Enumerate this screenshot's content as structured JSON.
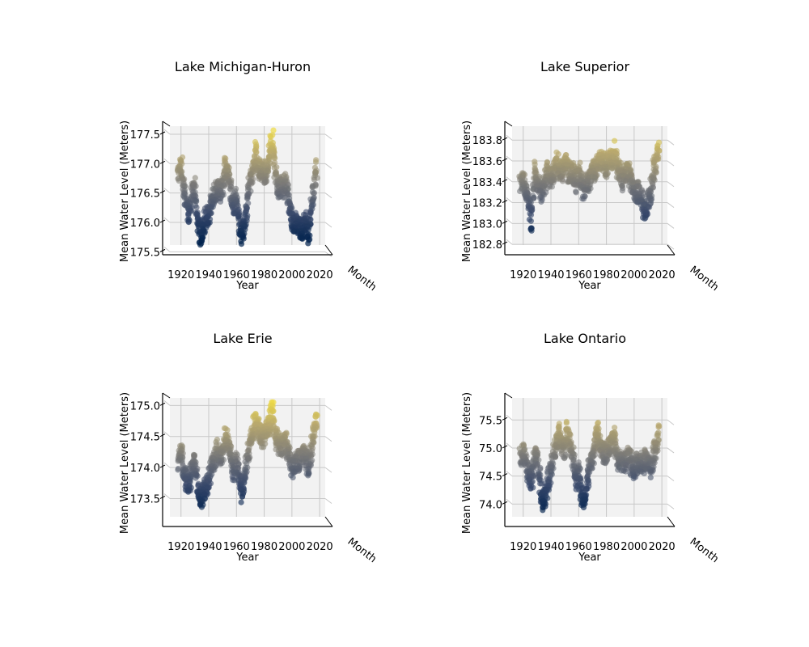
{
  "figure": {
    "background": "#ffffff",
    "colormap": "cividis",
    "colormap_stops": [
      "#00224e",
      "#3a4a6c",
      "#7c7b78",
      "#b8a86f",
      "#fde838"
    ]
  },
  "chart_data": [
    {
      "type": "scatter",
      "projection": "3d-side-view",
      "title": "Lake Michigan-Huron",
      "xlabel": "Year",
      "ylabel": "Mean Water Level (Meters)",
      "zlabel": "Month",
      "xlim": [
        1912,
        2024
      ],
      "ylim": [
        175.45,
        177.72
      ],
      "xticks": [
        1920,
        1940,
        1960,
        1980,
        2000,
        2020
      ],
      "yticks": [
        "175.5",
        "176.0",
        "176.5",
        "177.0",
        "177.5"
      ],
      "color_by": "y",
      "series": [
        {
          "x": [
            1918,
            1920,
            1922,
            1924,
            1926,
            1928,
            1930,
            1932,
            1934,
            1936,
            1938,
            1940,
            1942,
            1944,
            1946,
            1948,
            1950,
            1952,
            1954,
            1956,
            1958,
            1960,
            1962,
            1964,
            1966,
            1968,
            1970,
            1972,
            1974,
            1976,
            1978,
            1980,
            1982,
            1984,
            1986,
            1988,
            1990,
            1992,
            1994,
            1996,
            1998,
            2000,
            2002,
            2004,
            2006,
            2008,
            2010,
            2012,
            2014,
            2016,
            2018
          ],
          "y": [
            176.8,
            177.0,
            176.6,
            176.3,
            176.1,
            176.5,
            176.6,
            176.0,
            175.8,
            175.9,
            176.1,
            176.1,
            176.4,
            176.5,
            176.6,
            176.5,
            176.6,
            177.0,
            176.8,
            176.5,
            176.3,
            176.4,
            176.0,
            175.8,
            176.0,
            176.4,
            176.7,
            176.9,
            177.2,
            176.9,
            176.9,
            176.8,
            176.9,
            177.2,
            177.4,
            176.9,
            176.6,
            176.6,
            176.6,
            176.7,
            176.3,
            176.0,
            176.0,
            176.0,
            175.9,
            175.9,
            176.0,
            175.8,
            176.3,
            176.6,
            177.0
          ]
        }
      ]
    },
    {
      "type": "scatter",
      "projection": "3d-side-view",
      "title": "Lake Superior",
      "xlabel": "Year",
      "ylabel": "Mean Water Level (Meters)",
      "zlabel": "Month",
      "xlim": [
        1912,
        2024
      ],
      "ylim": [
        182.7,
        183.98
      ],
      "xticks": [
        1920,
        1940,
        1960,
        1980,
        2000,
        2020
      ],
      "yticks": [
        "182.8",
        "183.0",
        "183.2",
        "183.4",
        "183.6",
        "183.8"
      ],
      "color_by": "y",
      "series": [
        {
          "x": [
            1918,
            1920,
            1922,
            1924,
            1926,
            1928,
            1930,
            1932,
            1934,
            1936,
            1938,
            1940,
            1942,
            1944,
            1946,
            1948,
            1950,
            1952,
            1954,
            1956,
            1958,
            1960,
            1962,
            1964,
            1966,
            1968,
            1970,
            1972,
            1974,
            1976,
            1978,
            1980,
            1982,
            1984,
            1986,
            1988,
            1990,
            1992,
            1994,
            1996,
            1998,
            2000,
            2002,
            2004,
            2006,
            2008,
            2010,
            2012,
            2014,
            2016,
            2018
          ],
          "y": [
            183.4,
            183.4,
            183.3,
            183.2,
            183.0,
            183.5,
            183.4,
            183.3,
            183.3,
            183.4,
            183.5,
            183.4,
            183.5,
            183.6,
            183.5,
            183.5,
            183.6,
            183.5,
            183.5,
            183.5,
            183.4,
            183.5,
            183.4,
            183.3,
            183.4,
            183.4,
            183.5,
            183.5,
            183.6,
            183.6,
            183.6,
            183.5,
            183.6,
            183.6,
            183.7,
            183.5,
            183.5,
            183.4,
            183.5,
            183.5,
            183.4,
            183.3,
            183.3,
            183.3,
            183.2,
            183.1,
            183.2,
            183.3,
            183.5,
            183.6,
            183.7
          ]
        }
      ]
    },
    {
      "type": "scatter",
      "projection": "3d-side-view",
      "title": "Lake Erie",
      "xlabel": "Year",
      "ylabel": "Mean Water Level (Meters)",
      "zlabel": "Month",
      "xlim": [
        1912,
        2024
      ],
      "ylim": [
        173.05,
        175.2
      ],
      "xticks": [
        1920,
        1940,
        1960,
        1980,
        2000,
        2020
      ],
      "yticks": [
        "173.5",
        "174.0",
        "174.5",
        "175.0"
      ],
      "color_by": "y",
      "series": [
        {
          "x": [
            1918,
            1920,
            1922,
            1924,
            1926,
            1928,
            1930,
            1932,
            1934,
            1936,
            1938,
            1940,
            1942,
            1944,
            1946,
            1948,
            1950,
            1952,
            1954,
            1956,
            1958,
            1960,
            1962,
            1964,
            1966,
            1968,
            1970,
            1972,
            1974,
            1976,
            1978,
            1980,
            1982,
            1984,
            1986,
            1988,
            1990,
            1992,
            1994,
            1996,
            1998,
            2000,
            2002,
            2004,
            2006,
            2008,
            2010,
            2012,
            2014,
            2016,
            2018
          ],
          "y": [
            174.1,
            174.2,
            174.0,
            173.8,
            173.7,
            174.0,
            174.1,
            173.7,
            173.5,
            173.6,
            173.7,
            173.8,
            174.0,
            174.1,
            174.3,
            174.2,
            174.2,
            174.5,
            174.4,
            174.2,
            173.9,
            174.1,
            173.8,
            173.6,
            173.9,
            174.2,
            174.4,
            174.6,
            174.8,
            174.6,
            174.5,
            174.5,
            174.6,
            174.7,
            174.9,
            174.5,
            174.4,
            174.3,
            174.4,
            174.4,
            174.2,
            174.0,
            174.1,
            174.1,
            174.1,
            174.2,
            174.2,
            174.0,
            174.3,
            174.6,
            174.8
          ]
        }
      ]
    },
    {
      "type": "scatter",
      "projection": "3d-side-view",
      "title": "Lake Ontario",
      "xlabel": "Year",
      "ylabel": "Mean Water Level (Meters)",
      "zlabel": "Month",
      "xlim": [
        1912,
        2024
      ],
      "ylim": [
        73.6,
        75.98
      ],
      "xticks": [
        1920,
        1940,
        1960,
        1980,
        2000,
        2020
      ],
      "yticks": [
        "74.0",
        "74.5",
        "75.0",
        "75.5"
      ],
      "color_by": "y",
      "series": [
        {
          "x": [
            1918,
            1920,
            1922,
            1924,
            1926,
            1928,
            1930,
            1932,
            1934,
            1936,
            1938,
            1940,
            1942,
            1944,
            1946,
            1948,
            1950,
            1952,
            1954,
            1956,
            1958,
            1960,
            1962,
            1964,
            1966,
            1968,
            1970,
            1972,
            1974,
            1976,
            1978,
            1980,
            1982,
            1984,
            1986,
            1988,
            1990,
            1992,
            1994,
            1996,
            1998,
            2000,
            2002,
            2004,
            2006,
            2008,
            2010,
            2012,
            2014,
            2016,
            2018
          ],
          "y": [
            74.8,
            74.9,
            74.7,
            74.5,
            74.4,
            74.8,
            74.9,
            74.4,
            74.0,
            74.1,
            74.4,
            74.6,
            74.9,
            75.1,
            75.3,
            75.0,
            75.0,
            75.3,
            75.0,
            74.8,
            74.4,
            74.6,
            74.2,
            74.0,
            74.4,
            74.7,
            74.8,
            75.1,
            75.3,
            75.0,
            74.9,
            74.9,
            75.0,
            75.1,
            75.2,
            74.8,
            74.8,
            74.7,
            74.8,
            74.9,
            74.7,
            74.6,
            74.7,
            74.8,
            74.7,
            74.8,
            74.7,
            74.6,
            74.9,
            75.0,
            75.4
          ]
        }
      ]
    }
  ]
}
